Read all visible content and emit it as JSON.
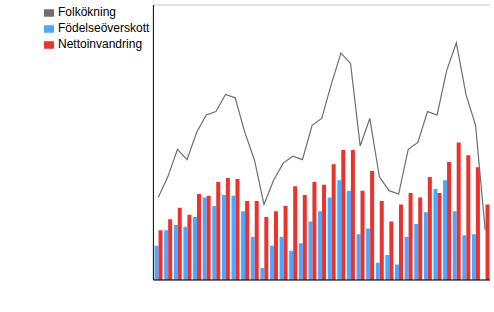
{
  "chart_data": {
    "type": "bar",
    "categories": [
      null,
      null,
      null,
      null,
      null,
      null,
      null,
      null,
      null,
      null,
      null,
      null,
      null,
      null,
      null,
      null,
      null,
      null,
      null,
      null,
      null,
      null,
      null,
      null,
      null,
      null,
      null,
      null,
      null,
      null,
      null,
      null,
      null,
      null,
      null
    ],
    "series": [
      {
        "name": "Födelseöverskott",
        "type": "bar",
        "color": "#4da6ff",
        "values": [
          1.0,
          1.45,
          1.6,
          1.55,
          1.83,
          2.4,
          2.15,
          2.47,
          2.45,
          2.0,
          1.25,
          0.35,
          1.0,
          1.25,
          0.85,
          1.07,
          1.7,
          2.0,
          2.4,
          2.9,
          2.6,
          1.33,
          1.5,
          0.5,
          0.73,
          0.45,
          1.25,
          1.63,
          1.97,
          2.65,
          2.9,
          2.0,
          1.3,
          1.33,
          null
        ]
      },
      {
        "name": "Nettoinvandring",
        "type": "bar",
        "color": "#e8332e",
        "values": [
          1.45,
          1.77,
          2.1,
          1.9,
          2.5,
          2.45,
          2.85,
          2.97,
          2.94,
          2.3,
          2.3,
          1.83,
          2.0,
          2.15,
          2.73,
          2.47,
          2.85,
          2.77,
          3.37,
          3.78,
          3.78,
          2.6,
          3.17,
          2.3,
          1.7,
          2.2,
          2.53,
          2.4,
          3.0,
          2.53,
          3.43,
          4.0,
          3.63,
          3.28,
          2.2
        ]
      },
      {
        "name": "Folkökning",
        "type": "line",
        "color": "#6e6e6e",
        "values": [
          2.4,
          3.0,
          3.8,
          3.5,
          4.3,
          4.8,
          4.9,
          5.4,
          5.3,
          4.3,
          3.5,
          2.2,
          2.9,
          3.4,
          3.6,
          3.5,
          4.5,
          4.7,
          5.7,
          6.6,
          6.3,
          3.9,
          4.7,
          3.0,
          2.6,
          2.5,
          3.8,
          4.0,
          4.9,
          4.8,
          6.1,
          6.9,
          5.4,
          4.5,
          1.45
        ]
      }
    ],
    "ylim": [
      0,
      8
    ],
    "yticks": [
      0,
      1,
      2,
      3,
      4,
      5,
      6,
      7,
      8
    ],
    "grid": true,
    "legend": "top-left",
    "tick_labels": false
  }
}
